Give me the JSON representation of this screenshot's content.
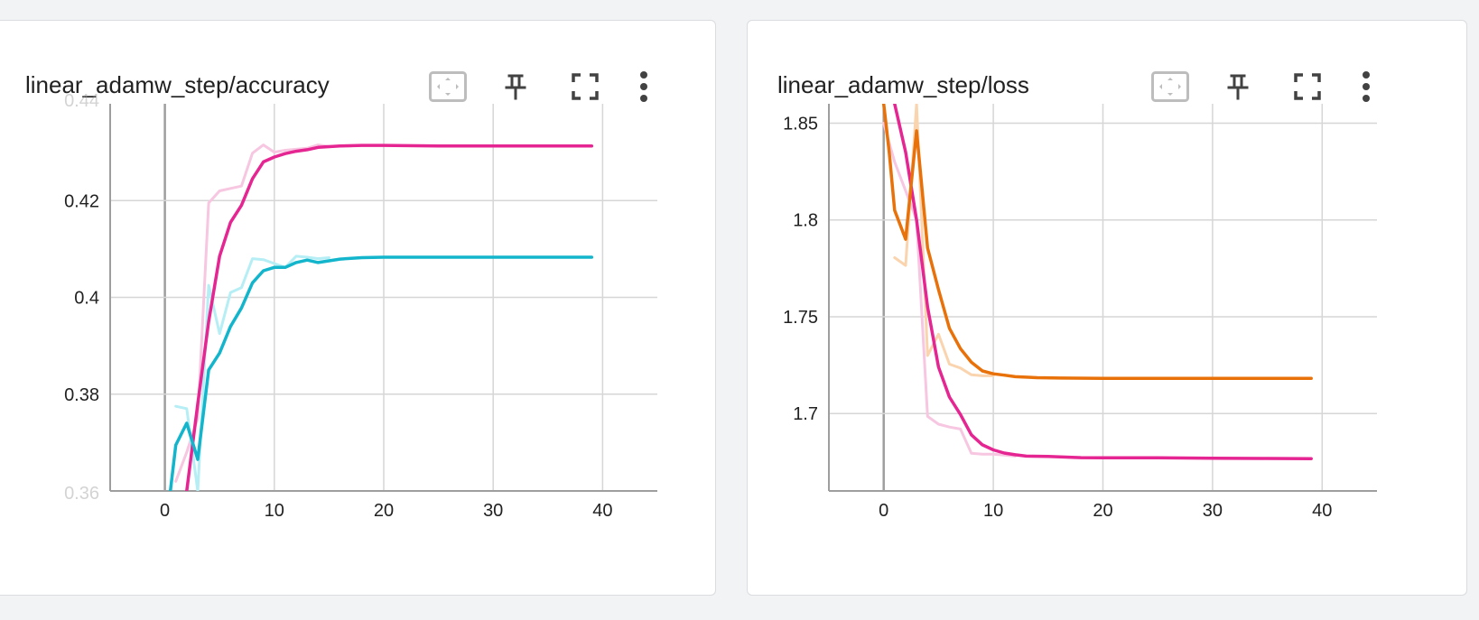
{
  "cards": [
    {
      "title": "linear_adamw_step/accuracy",
      "tools": [
        "fit-domain-icon",
        "pin-icon",
        "fullscreen-icon",
        "more-vert-icon"
      ]
    },
    {
      "title": "linear_adamw_step/loss",
      "tools": [
        "fit-domain-icon",
        "pin-icon",
        "fullscreen-icon",
        "more-vert-icon"
      ]
    }
  ],
  "colors": {
    "pink": "#e52592",
    "pink_light": "#f7c6e1",
    "cyan": "#12b5cb",
    "cyan_light": "#b6eef5",
    "orange": "#e8710a",
    "orange_light": "#fad4ae",
    "grid": "#d6d6d6",
    "axis": "#9e9e9e"
  },
  "chart_data": [
    {
      "type": "line",
      "title": "linear_adamw_step/accuracy",
      "xlabel": "",
      "ylabel": "",
      "xlim": [
        -5,
        45
      ],
      "ylim": [
        0.36,
        0.44
      ],
      "xticks": [
        0,
        10,
        20,
        30,
        40
      ],
      "yticks": [
        0.38,
        0.4,
        0.42
      ],
      "ytick_labels": [
        "0.38",
        "0.4",
        "0.42"
      ],
      "partial_yticks": [
        "0.44",
        "0.36"
      ],
      "grid": true,
      "series": [
        {
          "color": "#e52592",
          "style": "smoothed",
          "points": [
            [
              2,
              0.36
            ],
            [
              3,
              0.378
            ],
            [
              4,
              0.395
            ],
            [
              5,
              0.4085
            ],
            [
              6,
              0.4155
            ],
            [
              7,
              0.419
            ],
            [
              8,
              0.4245
            ],
            [
              9,
              0.428
            ],
            [
              10,
              0.429
            ],
            [
              11,
              0.4297
            ],
            [
              12,
              0.4302
            ],
            [
              13,
              0.4305
            ],
            [
              14,
              0.431
            ],
            [
              16,
              0.4313
            ],
            [
              18,
              0.4314
            ],
            [
              20,
              0.4314
            ],
            [
              25,
              0.4313
            ],
            [
              30,
              0.4313
            ],
            [
              39,
              0.4313
            ]
          ]
        },
        {
          "color": "#f7c6e1",
          "style": "raw",
          "points": [
            [
              1,
              0.362
            ],
            [
              2,
              0.368
            ],
            [
              3,
              0.375
            ],
            [
              4,
              0.4195
            ],
            [
              5,
              0.422
            ],
            [
              6,
              0.4225
            ],
            [
              7,
              0.423
            ],
            [
              8,
              0.4298
            ],
            [
              9,
              0.4315
            ],
            [
              10,
              0.43
            ],
            [
              11,
              0.4304
            ],
            [
              12,
              0.4306
            ],
            [
              13,
              0.4308
            ],
            [
              14,
              0.4315
            ],
            [
              15,
              0.4312
            ],
            [
              17,
              0.4313
            ]
          ]
        },
        {
          "color": "#12b5cb",
          "style": "smoothed",
          "points": [
            [
              0.5,
              0.36
            ],
            [
              1,
              0.3695
            ],
            [
              2,
              0.374
            ],
            [
              3,
              0.3665
            ],
            [
              4,
              0.385
            ],
            [
              5,
              0.3885
            ],
            [
              6,
              0.394
            ],
            [
              7,
              0.3978
            ],
            [
              8,
              0.403
            ],
            [
              9,
              0.4055
            ],
            [
              10,
              0.4062
            ],
            [
              11,
              0.4062
            ],
            [
              12,
              0.4072
            ],
            [
              13,
              0.4077
            ],
            [
              14,
              0.4072
            ],
            [
              16,
              0.4079
            ],
            [
              18,
              0.4082
            ],
            [
              20,
              0.4083
            ],
            [
              25,
              0.4083
            ],
            [
              30,
              0.4083
            ],
            [
              39,
              0.4083
            ]
          ]
        },
        {
          "color": "#b6eef5",
          "style": "raw",
          "points": [
            [
              1,
              0.3775
            ],
            [
              2,
              0.377
            ],
            [
              3,
              0.36
            ],
            [
              4,
              0.4025
            ],
            [
              5,
              0.3925
            ],
            [
              6,
              0.401
            ],
            [
              7,
              0.402
            ],
            [
              8,
              0.408
            ],
            [
              9,
              0.4078
            ],
            [
              10,
              0.407
            ],
            [
              11,
              0.4062
            ],
            [
              12,
              0.4085
            ],
            [
              13,
              0.4083
            ],
            [
              14,
              0.408
            ],
            [
              15,
              0.4082
            ]
          ]
        }
      ]
    },
    {
      "type": "line",
      "title": "linear_adamw_step/loss",
      "xlabel": "",
      "ylabel": "",
      "xlim": [
        -5,
        45
      ],
      "ylim": [
        1.66,
        1.86
      ],
      "xticks": [
        0,
        10,
        20,
        30,
        40
      ],
      "yticks": [
        1.7,
        1.75,
        1.8,
        1.85
      ],
      "ytick_labels": [
        "1.7",
        "1.75",
        "1.8",
        "1.85"
      ],
      "grid": true,
      "series": [
        {
          "color": "#e52592",
          "style": "smoothed",
          "points": [
            [
              1,
              1.86
            ],
            [
              2,
              1.835
            ],
            [
              3,
              1.8
            ],
            [
              4,
              1.755
            ],
            [
              5,
              1.724
            ],
            [
              6,
              1.7085
            ],
            [
              7,
              1.6995
            ],
            [
              8,
              1.689
            ],
            [
              9,
              1.6838
            ],
            [
              10,
              1.6812
            ],
            [
              11,
              1.6796
            ],
            [
              12,
              1.6787
            ],
            [
              13,
              1.678
            ],
            [
              15,
              1.6778
            ],
            [
              18,
              1.6772
            ],
            [
              20,
              1.6771
            ],
            [
              25,
              1.6771
            ],
            [
              30,
              1.6769
            ],
            [
              35,
              1.6768
            ],
            [
              39,
              1.6767
            ]
          ]
        },
        {
          "color": "#f7c6e1",
          "style": "raw",
          "points": [
            [
              0,
              1.85
            ],
            [
              1,
              1.83
            ],
            [
              2,
              1.815
            ],
            [
              3,
              1.8
            ],
            [
              4,
              1.6985
            ],
            [
              5,
              1.6945
            ],
            [
              6,
              1.693
            ],
            [
              7,
              1.692
            ],
            [
              8,
              1.6795
            ],
            [
              9,
              1.679
            ],
            [
              10,
              1.679
            ],
            [
              11,
              1.6785
            ],
            [
              12,
              1.678
            ]
          ]
        },
        {
          "color": "#e8710a",
          "style": "smoothed",
          "points": [
            [
              0,
              1.86
            ],
            [
              0.5,
              1.835
            ],
            [
              1,
              1.805
            ],
            [
              2,
              1.79
            ],
            [
              3,
              1.846
            ],
            [
              4,
              1.7855
            ],
            [
              5,
              1.764
            ],
            [
              6,
              1.744
            ],
            [
              7,
              1.7335
            ],
            [
              8,
              1.7265
            ],
            [
              9,
              1.722
            ],
            [
              10,
              1.7205
            ],
            [
              11,
              1.7198
            ],
            [
              12,
              1.719
            ],
            [
              14,
              1.7185
            ],
            [
              16,
              1.7183
            ],
            [
              20,
              1.7182
            ],
            [
              25,
              1.7182
            ],
            [
              30,
              1.7182
            ],
            [
              39,
              1.7182
            ]
          ]
        },
        {
          "color": "#fad4ae",
          "style": "raw",
          "points": [
            [
              1,
              1.7805
            ],
            [
              2,
              1.7765
            ],
            [
              3,
              1.86
            ],
            [
              4,
              1.73
            ],
            [
              5,
              1.741
            ],
            [
              6,
              1.7255
            ],
            [
              7,
              1.7235
            ],
            [
              8,
              1.72
            ],
            [
              9,
              1.7195
            ],
            [
              10,
              1.7195
            ]
          ]
        }
      ]
    }
  ]
}
